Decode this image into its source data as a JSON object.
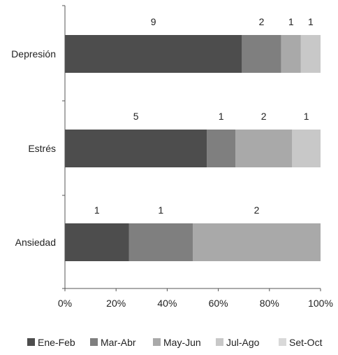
{
  "chart_data": {
    "type": "bar",
    "orientation": "horizontal",
    "stacking": "percent",
    "categories": [
      "Depresión",
      "Estrés",
      "Ansiedad"
    ],
    "series": [
      {
        "name": "Ene-Feb",
        "color": "#4d4d4d",
        "values": [
          9,
          5,
          1
        ]
      },
      {
        "name": "Mar-Abr",
        "color": "#7f7f7f",
        "values": [
          2,
          1,
          1
        ]
      },
      {
        "name": "May-Jun",
        "color": "#a9a9a9",
        "values": [
          1,
          2,
          2
        ]
      },
      {
        "name": "Jul-Ago",
        "color": "#c8c8c8",
        "values": [
          1,
          1,
          0
        ]
      },
      {
        "name": "Set-Oct",
        "color": "#d9d9d9",
        "values": [
          0,
          0,
          0
        ]
      }
    ],
    "xticks": [
      "0%",
      "20%",
      "40%",
      "60%",
      "80%",
      "100%"
    ],
    "xlim": [
      0,
      100
    ],
    "legend_position": "bottom",
    "grid": false
  }
}
